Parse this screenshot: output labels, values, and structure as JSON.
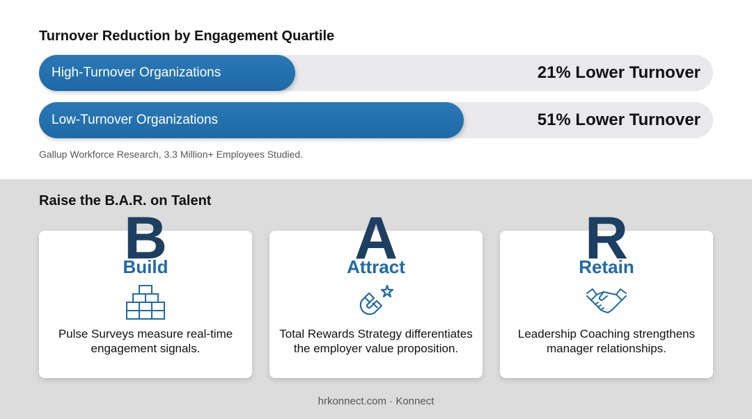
{
  "engagement": {
    "title": "Turnover Reduction by Engagement Quartile",
    "bars": [
      {
        "label": "High-Turnover Organizations",
        "value_text": "21% Lower Turnover",
        "fill_fraction": 0.38
      },
      {
        "label": "Low-Turnover Organizations",
        "value_text": "51% Lower Turnover",
        "fill_fraction": 0.63
      }
    ],
    "source": "Gallup Workforce Research, 3.3 Million+ Employees Studied."
  },
  "bar_framework": {
    "title": "Raise the B.A.R. on Talent",
    "cards": [
      {
        "letter": "B",
        "word": "Build",
        "icon": "blocks-icon",
        "text": "Pulse Surveys measure real-time engagement signals."
      },
      {
        "letter": "A",
        "word": "Attract",
        "icon": "magnet-icon",
        "text": "Total Rewards Strategy differentiates the employer value proposition."
      },
      {
        "letter": "R",
        "word": "Retain",
        "icon": "handshake-icon",
        "text": "Leadership Coaching strengthens manager relationships."
      }
    ]
  },
  "footer": {
    "text": "hrkonnect.com · Konnect"
  },
  "colors": {
    "accent": "#1e6aa7",
    "letter": "#1d3f62",
    "track": "#e9e9ec",
    "panel": "#dcdcdc"
  }
}
